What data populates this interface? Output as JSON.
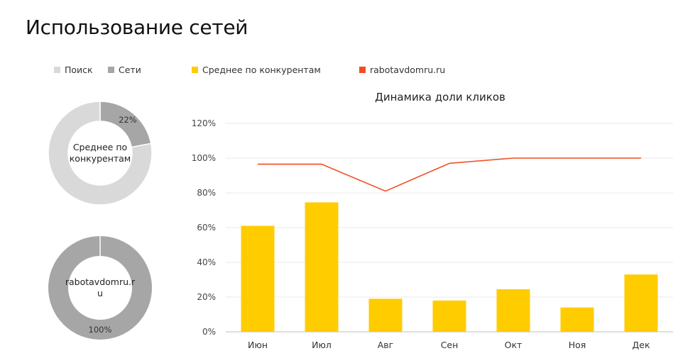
{
  "page": {
    "title": "Использование сетей"
  },
  "legend": {
    "items": [
      {
        "label": "Поиск",
        "color": "#d9d9d9"
      },
      {
        "label": "Сети",
        "color": "#a6a6a6"
      },
      {
        "label": "Среднее по конкурентам",
        "color": "#ffcc00"
      },
      {
        "label": "rabotavdomru.ru",
        "color": "#f04e23"
      }
    ]
  },
  "chart_data": [
    {
      "type": "pie",
      "donut": true,
      "center_label_lines": [
        "Среднее по",
        "конкурентам"
      ],
      "slices": [
        {
          "name": "Поиск",
          "value": 78,
          "color": "#d9d9d9"
        },
        {
          "name": "Сети",
          "value": 22,
          "color": "#a6a6a6"
        }
      ],
      "data_labels": [
        {
          "slice": "Сети",
          "text": "22%"
        }
      ]
    },
    {
      "type": "pie",
      "donut": true,
      "center_label_lines": [
        "rabotavdomru.r",
        "u"
      ],
      "slices": [
        {
          "name": "Поиск",
          "value": 0,
          "color": "#d9d9d9"
        },
        {
          "name": "Сети",
          "value": 100,
          "color": "#a6a6a6"
        }
      ],
      "data_labels": [
        {
          "slice": "Сети",
          "text": "100%"
        }
      ]
    },
    {
      "type": "bar",
      "title": "Динамика доли кликов",
      "categories": [
        "Июн",
        "Июл",
        "Авг",
        "Сен",
        "Окт",
        "Ноя",
        "Дек"
      ],
      "series": [
        {
          "name": "Среднее по конкурентам",
          "type": "bar",
          "color": "#ffcc00",
          "values": [
            0.61,
            0.745,
            0.19,
            0.18,
            0.245,
            0.14,
            0.33
          ]
        },
        {
          "name": "rabotavdomru.ru",
          "type": "line",
          "color": "#f04e23",
          "values": [
            0.965,
            0.965,
            0.81,
            0.97,
            1.0,
            1.0,
            1.0
          ]
        }
      ],
      "ylim": [
        0,
        1.2
      ],
      "yticks": [
        0,
        0.2,
        0.4,
        0.6,
        0.8,
        1.0,
        1.2
      ],
      "ytick_labels": [
        "0%",
        "20%",
        "40%",
        "60%",
        "80%",
        "100%",
        "120%"
      ],
      "grid": true,
      "legend_position": "top"
    }
  ]
}
